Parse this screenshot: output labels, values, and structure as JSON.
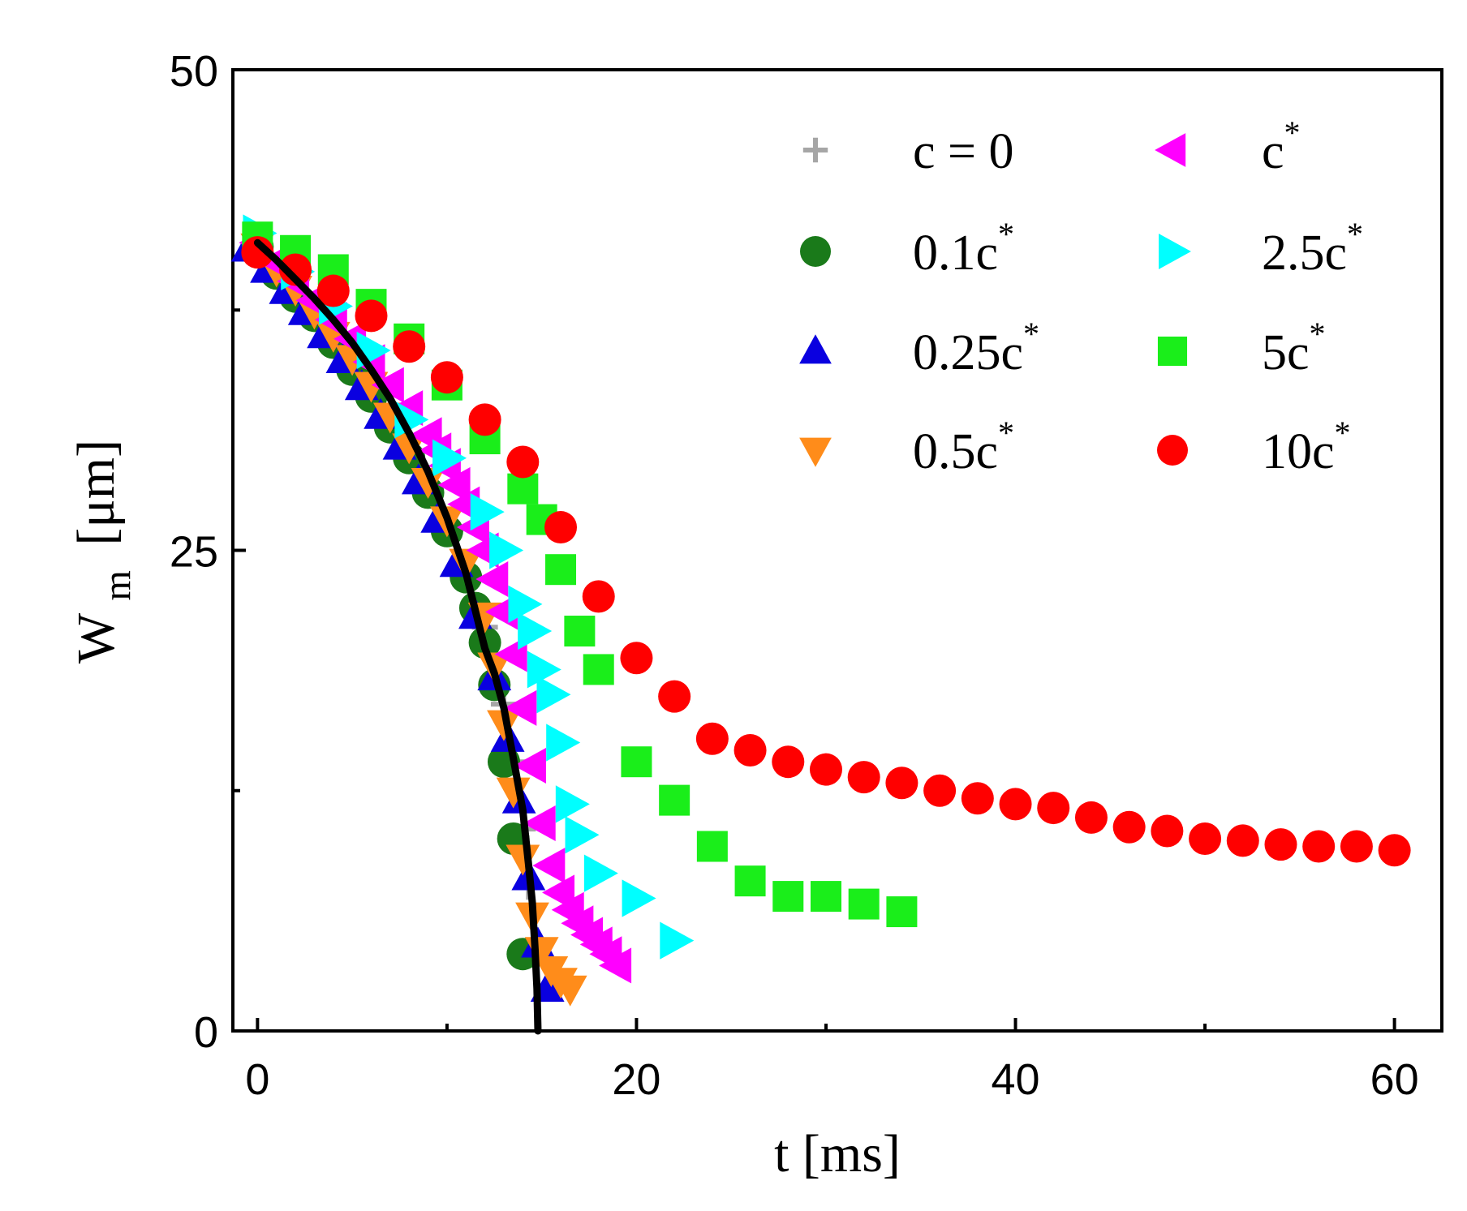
{
  "chart_data": {
    "type": "scatter",
    "title": "",
    "xlabel": "t [ms]",
    "ylabel_main": "W",
    "ylabel_sub": "m",
    "ylabel_unit": "[μm]",
    "xlim": [
      -1.3,
      62.5
    ],
    "ylim": [
      0,
      50
    ],
    "xticks": [
      0,
      20,
      40,
      60
    ],
    "xticks_minor": [
      10,
      30,
      50
    ],
    "yticks": [
      0,
      25,
      50
    ],
    "yticks_minor": [
      12.5,
      37.5
    ],
    "x_tick_labels": [
      "0",
      "20",
      "40",
      "60"
    ],
    "y_tick_labels": [
      "0",
      "25",
      "50"
    ],
    "grid": false,
    "legend_position": "top-right",
    "series": [
      {
        "name": "c = 0",
        "label_main": "c = 0",
        "label_sup": "",
        "marker": "plus",
        "color": "#a6a6a6",
        "x": [
          0,
          1,
          2,
          3,
          4,
          5,
          6,
          7,
          8,
          9,
          10,
          11,
          12,
          13,
          13.5,
          14,
          14.3,
          14.6
        ],
        "y": [
          41.0,
          39.8,
          38.6,
          37.6,
          36.4,
          35.0,
          33.6,
          32.0,
          30.2,
          28.2,
          26.4,
          24.0,
          21.0,
          17.0,
          14.0,
          10.5,
          7.5,
          4.0
        ]
      },
      {
        "name": "0.1c*",
        "label_main": "0.1c",
        "label_sup": "*",
        "marker": "circle",
        "color": "#1a7a1a",
        "x": [
          0,
          1,
          2,
          3,
          4,
          5,
          6,
          7,
          8,
          9,
          10,
          11,
          11.5,
          12,
          12.5,
          13,
          13.5,
          14
        ],
        "y": [
          40.8,
          39.4,
          38.2,
          37.2,
          35.8,
          34.4,
          33.0,
          31.4,
          29.8,
          28.0,
          26.0,
          23.6,
          22.0,
          20.2,
          18.0,
          14.0,
          10.0,
          4.0
        ]
      },
      {
        "name": "0.25c*",
        "label_main": "0.25c",
        "label_sup": "*",
        "marker": "triangle-up",
        "color": "#0a00e0",
        "x": [
          -0.5,
          0.5,
          1.5,
          2.5,
          3.5,
          4.5,
          5.5,
          6.5,
          7.5,
          8.5,
          9.5,
          10.5,
          11.5,
          12.5,
          13.2,
          13.8,
          14.3,
          14.8,
          15.3
        ],
        "y": [
          40.7,
          39.6,
          38.5,
          37.4,
          36.2,
          34.9,
          33.5,
          32.0,
          30.4,
          28.6,
          26.6,
          24.3,
          21.6,
          18.4,
          15.2,
          12.0,
          8.0,
          4.5,
          2.2
        ]
      },
      {
        "name": "0.5c*",
        "label_main": "0.5c",
        "label_sup": "*",
        "marker": "triangle-down",
        "color": "#ff8c1a",
        "x": [
          0,
          1,
          2,
          3,
          4,
          5,
          6,
          7,
          8,
          9,
          10,
          11,
          12,
          12.5,
          13,
          13.5,
          14,
          14.5,
          15,
          15.5,
          16,
          16.5
        ],
        "y": [
          40.8,
          39.6,
          38.6,
          37.4,
          36.2,
          35.0,
          33.6,
          32.0,
          30.4,
          28.6,
          26.6,
          24.4,
          21.6,
          19.0,
          16.0,
          12.5,
          9.0,
          6.0,
          4.2,
          3.2,
          2.6,
          2.2
        ]
      },
      {
        "name": "c*",
        "label_main": "c",
        "label_sup": "*",
        "marker": "triangle-left",
        "color": "#ff00ff",
        "x": [
          0,
          1,
          2,
          3,
          4,
          5,
          6,
          7,
          8,
          9,
          9.5,
          10,
          10.5,
          11,
          11.5,
          12,
          12.5,
          13,
          13.5,
          14,
          14.5,
          15,
          15.5,
          16,
          16.5,
          17,
          17.5,
          18,
          18.5,
          19
        ],
        "y": [
          41.0,
          40.0,
          39.0,
          38.0,
          37.0,
          36.0,
          34.8,
          33.6,
          32.4,
          31.0,
          30.2,
          29.4,
          28.4,
          27.4,
          26.2,
          25.0,
          23.5,
          21.8,
          19.6,
          16.8,
          13.8,
          10.8,
          8.6,
          7.2,
          6.3,
          5.6,
          5.0,
          4.5,
          4.0,
          3.4
        ]
      },
      {
        "name": "2.5c*",
        "label_main": "2.5c",
        "label_sup": "*",
        "marker": "triangle-right",
        "color": "#00ffff",
        "x": [
          0,
          2,
          4,
          6,
          8,
          10,
          12,
          13,
          14,
          14.5,
          15,
          15.5,
          16,
          16.5,
          17,
          18,
          20,
          22
        ],
        "y": [
          41.5,
          39.5,
          37.7,
          35.4,
          31.8,
          29.8,
          27.0,
          25.0,
          22.2,
          20.8,
          18.8,
          17.5,
          15.0,
          11.8,
          10.2,
          8.2,
          6.9,
          4.7
        ]
      },
      {
        "name": "5c*",
        "label_main": "5c",
        "label_sup": "*",
        "marker": "square",
        "color": "#1aee1a",
        "x": [
          0,
          2,
          4,
          6,
          8,
          10,
          12,
          14,
          15,
          16,
          17,
          18,
          20,
          22,
          24,
          26,
          28,
          30,
          32,
          34
        ],
        "y": [
          41.3,
          40.6,
          39.6,
          37.8,
          36.0,
          33.6,
          30.8,
          28.2,
          26.6,
          24.0,
          20.8,
          18.8,
          14.0,
          12.0,
          9.6,
          7.8,
          7.0,
          7.0,
          6.6,
          6.2
        ]
      },
      {
        "name": "10c*",
        "label_main": "10c",
        "label_sup": "*",
        "marker": "circle",
        "color": "#ff0000",
        "x": [
          0,
          2,
          4,
          6,
          8,
          10,
          12,
          14,
          16,
          18,
          20,
          22,
          24,
          26,
          28,
          30,
          32,
          34,
          36,
          38,
          40,
          42,
          44,
          46,
          48,
          50,
          52,
          54,
          56,
          58,
          60
        ],
        "y": [
          40.5,
          39.6,
          38.5,
          37.2,
          35.6,
          34.0,
          31.8,
          29.6,
          26.2,
          22.6,
          19.4,
          17.4,
          15.2,
          14.6,
          14.0,
          13.6,
          13.2,
          12.9,
          12.5,
          12.1,
          11.8,
          11.6,
          11.1,
          10.6,
          10.4,
          10.0,
          9.9,
          9.7,
          9.6,
          9.6,
          9.4
        ]
      }
    ],
    "fit_curve": {
      "name": "fit",
      "color": "#000000",
      "t_c": 14.8,
      "x": [
        0,
        1,
        2,
        3,
        4,
        5,
        6,
        7,
        8,
        9,
        10,
        11,
        12,
        12.5,
        13,
        13.5,
        14,
        14.3,
        14.5,
        14.65,
        14.75,
        14.8
      ],
      "y": [
        41.0,
        40.1,
        39.1,
        38.1,
        37.0,
        35.8,
        34.4,
        32.9,
        31.1,
        29.1,
        26.7,
        23.8,
        19.9,
        18.6,
        16.8,
        14.2,
        11.5,
        8.7,
        6.7,
        4.2,
        2.2,
        0.0
      ]
    }
  }
}
